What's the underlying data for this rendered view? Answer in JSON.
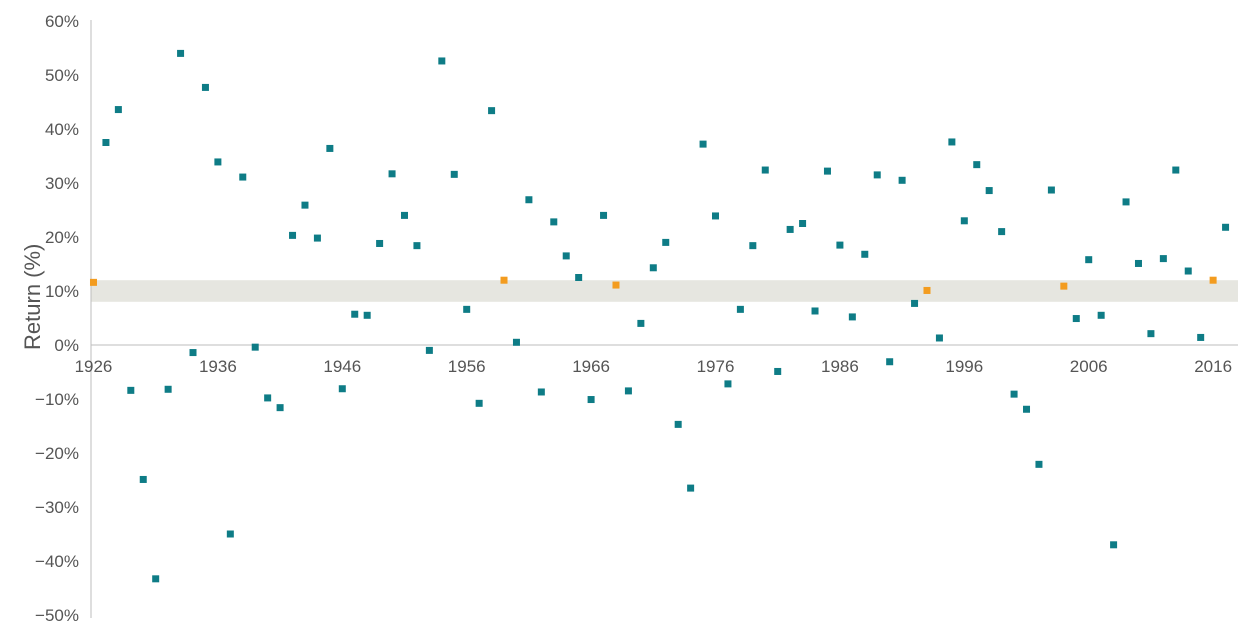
{
  "chart_data": {
    "type": "scatter",
    "title": "",
    "xlabel": "",
    "ylabel": "Return (%)",
    "xlim": [
      1925.8,
      2018.0
    ],
    "ylim": [
      -50,
      60
    ],
    "x_ticks": [
      1926,
      1936,
      1946,
      1956,
      1966,
      1976,
      1986,
      1996,
      2006,
      2016
    ],
    "x_tick_labels": [
      "1926",
      "1936",
      "1946",
      "1956",
      "1966",
      "1976",
      "1986",
      "1996",
      "2006",
      "2016"
    ],
    "y_ticks": [
      -50,
      -40,
      -30,
      -20,
      -10,
      0,
      10,
      20,
      30,
      40,
      50,
      60
    ],
    "y_tick_labels": [
      "−50%",
      "−40%",
      "−30%",
      "−20%",
      "−10%",
      "0%",
      "10%",
      "20%",
      "30%",
      "40%",
      "50%",
      "60%"
    ],
    "grid": false,
    "band": {
      "from": 8,
      "to": 12,
      "color": "#E6E6E0"
    },
    "colors": {
      "default": "#0E7C86",
      "highlight": "#F39C1F"
    },
    "highlight_years": [
      1926,
      1959,
      1968,
      1993,
      2004,
      2016
    ],
    "x": [
      1926,
      1927,
      1928,
      1929,
      1930,
      1931,
      1932,
      1933,
      1934,
      1935,
      1936,
      1937,
      1938,
      1939,
      1940,
      1941,
      1942,
      1943,
      1944,
      1945,
      1946,
      1947,
      1948,
      1949,
      1950,
      1951,
      1952,
      1953,
      1954,
      1955,
      1956,
      1957,
      1958,
      1959,
      1960,
      1961,
      1962,
      1963,
      1964,
      1965,
      1966,
      1967,
      1968,
      1969,
      1970,
      1971,
      1972,
      1973,
      1974,
      1975,
      1976,
      1977,
      1978,
      1979,
      1980,
      1981,
      1982,
      1983,
      1984,
      1985,
      1986,
      1987,
      1988,
      1989,
      1990,
      1991,
      1992,
      1993,
      1994,
      1995,
      1996,
      1997,
      1998,
      1999,
      2000,
      2001,
      2002,
      2003,
      2004,
      2005,
      2006,
      2007,
      2008,
      2009,
      2010,
      2011,
      2012,
      2013,
      2014,
      2015,
      2016,
      2017
    ],
    "y": [
      11.6,
      37.5,
      43.6,
      -8.4,
      -24.9,
      -43.3,
      -8.2,
      54.0,
      -1.4,
      47.7,
      33.9,
      -35.0,
      31.1,
      -0.4,
      -9.8,
      -11.6,
      20.3,
      25.9,
      19.8,
      36.4,
      -8.1,
      5.7,
      5.5,
      18.8,
      31.7,
      24.0,
      18.4,
      -1.0,
      52.6,
      31.6,
      6.6,
      -10.8,
      43.4,
      12.0,
      0.5,
      26.9,
      -8.7,
      22.8,
      16.5,
      12.5,
      -10.1,
      24.0,
      11.1,
      -8.5,
      4.0,
      14.3,
      19.0,
      -14.7,
      -26.5,
      37.2,
      23.9,
      -7.2,
      6.6,
      18.4,
      32.4,
      -4.9,
      21.4,
      22.5,
      6.3,
      32.2,
      18.5,
      5.2,
      16.8,
      31.5,
      -3.1,
      30.5,
      7.7,
      10.1,
      1.3,
      37.6,
      23.0,
      33.4,
      28.6,
      21.0,
      -9.1,
      -11.9,
      -22.1,
      28.7,
      10.9,
      4.9,
      15.8,
      5.5,
      -37.0,
      26.5,
      15.1,
      2.1,
      16.0,
      32.4,
      13.7,
      1.4,
      12.0,
      21.8
    ]
  }
}
